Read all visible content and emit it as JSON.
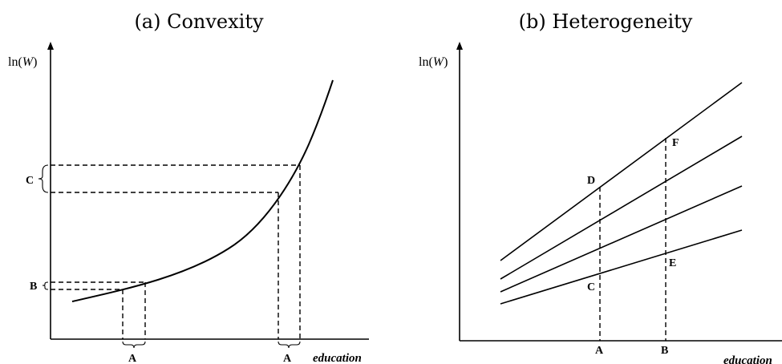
{
  "panel_a": {
    "title": "(a) Convexity",
    "ylabel_prefix": "ln(",
    "ylabel_var": "W",
    "ylabel_suffix": ")",
    "xlabel": "education",
    "marks": {
      "c": "C",
      "b": "B",
      "a_left": "A",
      "a_right": "A"
    }
  },
  "panel_b": {
    "title": "(b) Heterogeneity",
    "ylabel_prefix": "ln(",
    "ylabel_var": "W",
    "ylabel_suffix": ")",
    "xlabel": "education",
    "marks": {
      "d": "D",
      "c": "C",
      "f": "F",
      "e": "E",
      "a": "A",
      "b": "B"
    }
  }
}
